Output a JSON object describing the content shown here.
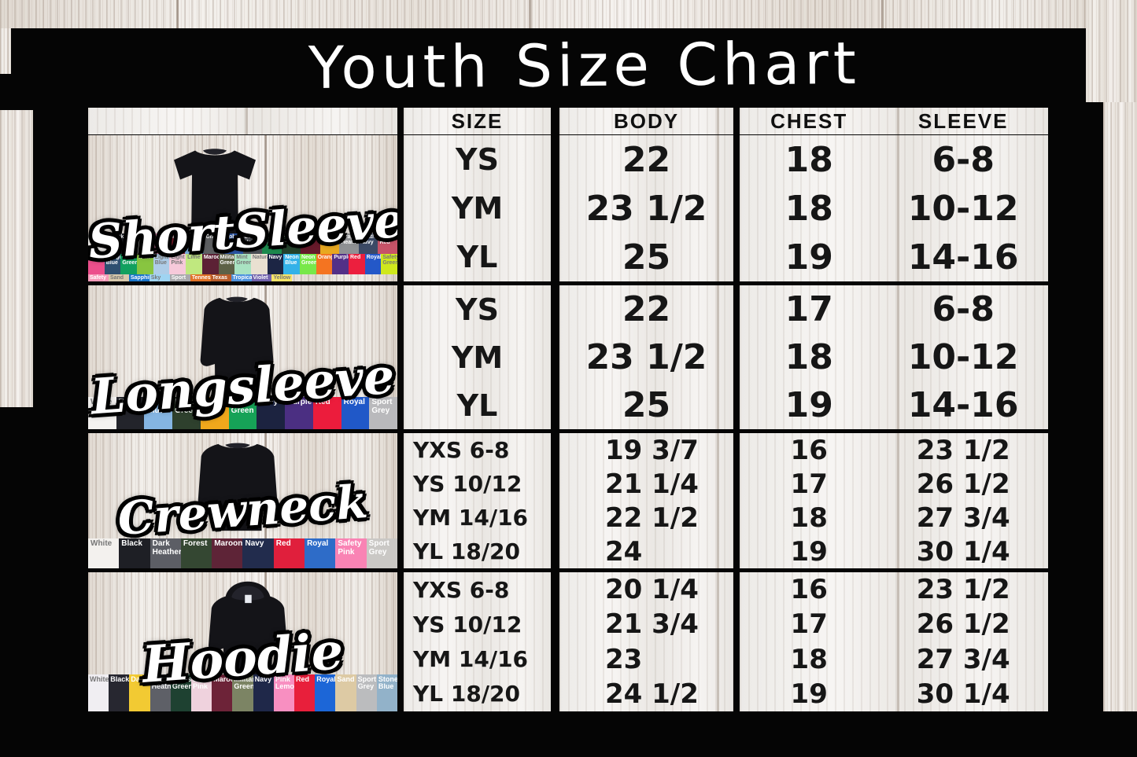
{
  "title": "Youth Size Chart",
  "colors": {
    "background": "#000000",
    "title_text": "#ffffff",
    "table_text": "#161616",
    "garment_color": "#141418"
  },
  "table": {
    "headers": [
      "SIZE",
      "BODY",
      "CHEST",
      "SLEEVE"
    ]
  },
  "chart_data": [
    {
      "type": "table",
      "title": "ShortSleeve",
      "columns": [
        "SIZE",
        "BODY",
        "CHEST",
        "SLEEVE"
      ],
      "rows": [
        [
          "YS",
          "22",
          "18",
          "6-8"
        ],
        [
          "YM",
          "23 1/2",
          "18",
          "10-12"
        ],
        [
          "YL",
          "25",
          "19",
          "14-16"
        ]
      ]
    },
    {
      "type": "table",
      "title": "Longsleeve",
      "columns": [
        "SIZE",
        "BODY",
        "CHEST",
        "SLEEVE"
      ],
      "rows": [
        [
          "YS",
          "22",
          "17",
          "6-8"
        ],
        [
          "YM",
          "23 1/2",
          "18",
          "10-12"
        ],
        [
          "YL",
          "25",
          "19",
          "14-16"
        ]
      ]
    },
    {
      "type": "table",
      "title": "Crewneck",
      "columns": [
        "SIZE",
        "BODY",
        "CHEST",
        "SLEEVE"
      ],
      "rows": [
        [
          "YXS 6-8",
          "19 3/7",
          "16",
          "23 1/2"
        ],
        [
          "YS 10/12",
          "21 1/4",
          "17",
          "26 1/2"
        ],
        [
          "YM 14/16",
          "22 1/2",
          "18",
          "27 3/4"
        ],
        [
          "YL 18/20",
          "24",
          "19",
          "30 1/4"
        ]
      ]
    },
    {
      "type": "table",
      "title": "Hoodie",
      "columns": [
        "SIZE",
        "BODY",
        "CHEST",
        "SLEEVE"
      ],
      "rows": [
        [
          "YXS 6-8",
          "20 1/4",
          "16",
          "23 1/2"
        ],
        [
          "YS 10/12",
          "21 3/4",
          "17",
          "26 1/2"
        ],
        [
          "YM 14/16",
          "23",
          "18",
          "27 3/4"
        ],
        [
          "YL 18/20",
          "24 1/2",
          "19",
          "30 1/4"
        ]
      ]
    }
  ],
  "sections": [
    {
      "label": "ShortSleeve",
      "garment_icon": "tshirt-icon",
      "swatch_rows": [
        [
          {
            "name": "White",
            "color": "#f4f2ef",
            "text": "#777"
          },
          {
            "name": "Black",
            "color": "#1f2127",
            "text": "#fff"
          },
          {
            "name": "Ash",
            "color": "#e9e7e4",
            "text": "#777"
          },
          {
            "name": "Azalea",
            "color": "#ff93c6",
            "text": "#fff"
          },
          {
            "name": "Cardinal",
            "color": "#8c1d30",
            "text": "#fff"
          },
          {
            "name": "Carolina Blue",
            "color": "#7db0e0",
            "text": "#fff"
          },
          {
            "name": "Charcoal",
            "color": "#5f6163",
            "text": "#fff"
          },
          {
            "name": "Cobalt",
            "color": "#2a55a5",
            "text": "#fff"
          },
          {
            "name": "Dark Heather",
            "color": "#4e5157",
            "text": "#fff"
          },
          {
            "name": "Electric Green",
            "color": "#1d8a4e",
            "text": "#fff"
          },
          {
            "name": "Forest Green",
            "color": "#24422c",
            "text": "#fff"
          },
          {
            "name": "Garnet",
            "color": "#671a2b",
            "text": "#fff"
          },
          {
            "name": "Gold",
            "color": "#e8a820",
            "text": "#fff"
          },
          {
            "name": "Graphite Heather",
            "color": "#8f9194",
            "text": "#fff"
          },
          {
            "name": "Heather Navy",
            "color": "#3c4a66",
            "text": "#fff"
          },
          {
            "name": "Heather Red",
            "color": "#c75368",
            "text": "#fff"
          }
        ],
        [
          {
            "name": "Heliconia",
            "color": "#ec4f8c",
            "text": "#fff"
          },
          {
            "name": "Indigo Blue",
            "color": "#2e4f70",
            "text": "#fff"
          },
          {
            "name": "Irish Green",
            "color": "#12a05f",
            "text": "#fff"
          },
          {
            "name": "Kiwi",
            "color": "#88c540",
            "text": "#fff"
          },
          {
            "name": "Light Blue",
            "color": "#aecde8",
            "text": "#777"
          },
          {
            "name": "Light Pink",
            "color": "#f6c9da",
            "text": "#777"
          },
          {
            "name": "Lime",
            "color": "#c0e87f",
            "text": "#777"
          },
          {
            "name": "Maroon",
            "color": "#5c2135",
            "text": "#fff"
          },
          {
            "name": "Military Green",
            "color": "#5d6147",
            "text": "#fff"
          },
          {
            "name": "Mint Green",
            "color": "#a9e3c2",
            "text": "#777"
          },
          {
            "name": "Natural",
            "color": "#e9e0d1",
            "text": "#777"
          },
          {
            "name": "Navy",
            "color": "#1c2544",
            "text": "#fff"
          },
          {
            "name": "Neon Blue",
            "color": "#33b1e8",
            "text": "#fff"
          },
          {
            "name": "Neon Green",
            "color": "#78e84a",
            "text": "#fff"
          },
          {
            "name": "Orange",
            "color": "#f47421",
            "text": "#fff"
          },
          {
            "name": "Purple",
            "color": "#533087",
            "text": "#fff"
          },
          {
            "name": "Red",
            "color": "#ec1f3e",
            "text": "#fff"
          },
          {
            "name": "Royal",
            "color": "#2458c8",
            "text": "#fff"
          },
          {
            "name": "Safety Green",
            "color": "#cfe81c",
            "text": "#777"
          }
        ],
        [
          {
            "name": "Safety",
            "color": "#f79ab9",
            "text": "#fff"
          },
          {
            "name": "Sand",
            "color": "#d8c9ac",
            "text": "#777"
          },
          {
            "name": "Sapphire",
            "color": "#1a75c9",
            "text": "#fff"
          },
          {
            "name": "Sky",
            "color": "#9fd4f2",
            "text": "#777"
          },
          {
            "name": "Sport",
            "color": "#a9a9ac",
            "text": "#fff"
          },
          {
            "name": "Tennessee",
            "color": "#e07226",
            "text": "#fff"
          },
          {
            "name": "Texas",
            "color": "#b85c2a",
            "text": "#fff"
          },
          {
            "name": "Tropical",
            "color": "#4f93dd",
            "text": "#fff"
          },
          {
            "name": "Violet",
            "color": "#7263ad",
            "text": "#fff"
          },
          {
            "name": "Yellow",
            "color": "#f7e468",
            "text": "#777"
          }
        ]
      ]
    },
    {
      "label": "Longsleeve",
      "garment_icon": "longsleeve-shirt-icon",
      "swatch_rows": [
        [
          {
            "name": "White",
            "color": "#f4f2f0",
            "text": "#777"
          },
          {
            "name": "Black",
            "color": "#23242b",
            "text": "#fff"
          },
          {
            "name": "Carolina Blue",
            "color": "#85b5e2",
            "text": "#fff"
          },
          {
            "name": "Forest Green",
            "color": "#2e402d",
            "text": "#fff"
          },
          {
            "name": "Gold",
            "color": "#f0a81c",
            "text": "#fff"
          },
          {
            "name": "Irish Green",
            "color": "#16a257",
            "text": "#fff"
          },
          {
            "name": "Navy",
            "color": "#1c2340",
            "text": "#fff"
          },
          {
            "name": "Purple",
            "color": "#4b2f82",
            "text": "#fff"
          },
          {
            "name": "Red",
            "color": "#ec1c3c",
            "text": "#fff"
          },
          {
            "name": "Royal",
            "color": "#2058c8",
            "text": "#fff"
          },
          {
            "name": "Sport Grey",
            "color": "#b9b9bc",
            "text": "#fff"
          }
        ]
      ]
    },
    {
      "label": "Crewneck",
      "garment_icon": "crewneck-sweatshirt-icon",
      "swatch_rows": [
        [
          {
            "name": "White",
            "color": "#f3f1ee",
            "text": "#777"
          },
          {
            "name": "Black",
            "color": "#1e1f25",
            "text": "#fff"
          },
          {
            "name": "Dark Heather",
            "color": "#5c5e65",
            "text": "#fff"
          },
          {
            "name": "Forest",
            "color": "#344732",
            "text": "#fff"
          },
          {
            "name": "Maroon",
            "color": "#5e2437",
            "text": "#fff"
          },
          {
            "name": "Navy",
            "color": "#222c4d",
            "text": "#fff"
          },
          {
            "name": "Red",
            "color": "#e01f3c",
            "text": "#fff"
          },
          {
            "name": "Royal",
            "color": "#2e6cc8",
            "text": "#fff"
          },
          {
            "name": "Safety Pink",
            "color": "#f983b4",
            "text": "#fff"
          },
          {
            "name": "Sport Grey",
            "color": "#cac8c5",
            "text": "#fff"
          }
        ]
      ]
    },
    {
      "label": "Hoodie",
      "garment_icon": "hoodie-icon",
      "swatch_rows": [
        [
          {
            "name": "White",
            "color": "#f0eef2",
            "text": "#777"
          },
          {
            "name": "Black",
            "color": "#272730",
            "text": "#fff"
          },
          {
            "name": "Daisy",
            "color": "#f2ca33",
            "text": "#fff"
          },
          {
            "name": "Dark Heather",
            "color": "#5e6067",
            "text": "#fff"
          },
          {
            "name": "Forest Green",
            "color": "#1e4131",
            "text": "#fff"
          },
          {
            "name": "Light Pink",
            "color": "#efd2dd",
            "text": "#fff"
          },
          {
            "name": "Maroon",
            "color": "#6d2338",
            "text": "#fff"
          },
          {
            "name": "Military Green",
            "color": "#7c8464",
            "text": "#fff"
          },
          {
            "name": "Navy",
            "color": "#1f2849",
            "text": "#fff"
          },
          {
            "name": "Pink Lemonade",
            "color": "#f88fc1",
            "text": "#fff"
          },
          {
            "name": "Red",
            "color": "#e81f3b",
            "text": "#fff"
          },
          {
            "name": "Royal",
            "color": "#1c66d7",
            "text": "#fff"
          },
          {
            "name": "Sand",
            "color": "#ddcaa4",
            "text": "#fff"
          },
          {
            "name": "Sport Grey",
            "color": "#bbbcbe",
            "text": "#fff"
          },
          {
            "name": "Stone Blue",
            "color": "#92b2c9",
            "text": "#fff"
          }
        ]
      ]
    }
  ]
}
